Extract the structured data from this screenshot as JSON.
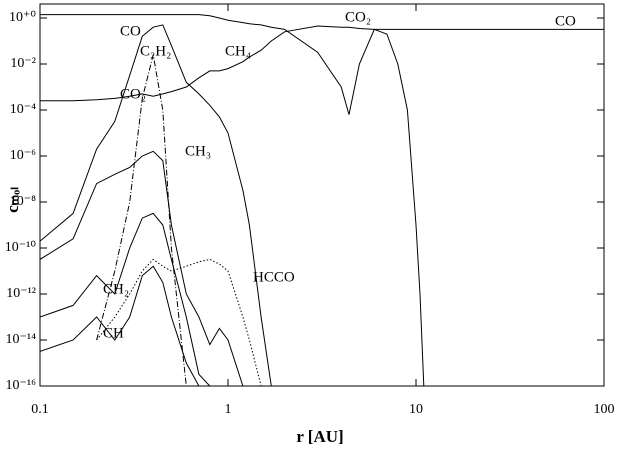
{
  "chart_data": {
    "type": "line",
    "xlabel": "r [AU]",
    "ylabel": "cₘₒₗ",
    "log_x": true,
    "log_y": true,
    "xlim": [
      0.1,
      100
    ],
    "ylim": [
      1e-16,
      1
    ],
    "xticks": [
      0.1,
      1,
      10,
      100
    ],
    "yticks": [
      {
        "value": 1,
        "label": "10⁺⁰"
      },
      {
        "value": 0.01,
        "label": "10⁻²"
      },
      {
        "value": 0.0001,
        "label": "10⁻⁴"
      },
      {
        "value": 1e-06,
        "label": "10⁻⁶"
      },
      {
        "value": 1e-08,
        "label": "10⁻⁸"
      },
      {
        "value": 1e-10,
        "label": "10⁻¹⁰"
      },
      {
        "value": 1e-12,
        "label": "10⁻¹²"
      },
      {
        "value": 1e-14,
        "label": "10⁻¹⁴"
      },
      {
        "value": 1e-16,
        "label": "10⁻¹⁶"
      }
    ],
    "x": [
      0.1,
      0.15,
      0.2,
      0.25,
      0.3,
      0.35,
      0.4,
      0.45,
      0.5,
      0.6,
      0.7,
      0.8,
      0.9,
      1,
      1.2,
      1.3,
      1.5,
      1.7,
      2,
      3,
      4,
      4.4,
      5,
      6,
      7,
      8,
      9,
      10,
      10.5,
      11,
      20,
      50,
      100
    ],
    "series": [
      {
        "name": "CO",
        "color": "#000000",
        "style": "solid",
        "values": [
          1.4,
          1.4,
          1.4,
          1.4,
          1.4,
          1.4,
          1.4,
          1.4,
          1.4,
          1.4,
          1.4,
          1.25,
          1,
          0.8,
          0.63,
          0.56,
          0.5,
          0.4,
          0.32,
          0.032,
          0.001,
          6.3e-05,
          0.01,
          0.32,
          0.32,
          0.32,
          0.32,
          0.32,
          0.32,
          0.32,
          0.32,
          0.32,
          0.32
        ]
      },
      {
        "name": "CO₂",
        "color": "#000000",
        "style": "solid",
        "values": [
          0.00025,
          0.00025,
          0.00028,
          0.00032,
          0.0004,
          0.0005,
          0.0004,
          0.0005,
          0.00063,
          0.001,
          0.0025,
          0.005,
          0.005,
          0.0063,
          0.0126,
          0.02,
          0.04,
          0.1,
          0.25,
          0.45,
          0.4,
          0.4,
          0.35,
          0.32,
          0.2,
          0.01,
          0.0001,
          1e-09,
          1e-12,
          1e-16,
          null,
          null,
          null
        ]
      },
      {
        "name": "C₂H₂",
        "color": "#000000",
        "style": "dashdot",
        "values": [
          null,
          null,
          1e-14,
          1e-11,
          1e-08,
          0.00032,
          0.025,
          0.0001,
          1e-10,
          1e-16,
          null,
          null,
          null,
          null,
          null,
          null,
          null,
          null,
          null,
          null,
          null,
          null,
          null,
          null,
          null,
          null,
          null,
          null,
          null,
          null,
          null,
          null,
          null
        ]
      },
      {
        "name": "CH₄",
        "color": "#000000",
        "style": "solid",
        "values": [
          2e-10,
          3.2e-09,
          2e-06,
          3.2e-05,
          0.0032,
          0.16,
          0.4,
          0.5,
          0.063,
          0.0016,
          0.0005,
          0.00016,
          5e-05,
          1e-05,
          3.2e-08,
          1e-09,
          1e-13,
          1e-16,
          null,
          null,
          null,
          null,
          null,
          null,
          null,
          null,
          null,
          null,
          null,
          null,
          null,
          null,
          null
        ]
      },
      {
        "name": "CH₃",
        "color": "#000000",
        "style": "solid",
        "values": [
          3.2e-11,
          2.5e-10,
          6.3e-08,
          1.6e-07,
          3.2e-07,
          1e-06,
          1.6e-06,
          6.3e-07,
          1e-09,
          1e-12,
          1e-13,
          6.3e-15,
          3.2e-14,
          1e-14,
          1e-16,
          null,
          null,
          null,
          null,
          null,
          null,
          null,
          null,
          null,
          null,
          null,
          null,
          null,
          null,
          null,
          null,
          null,
          null
        ]
      },
      {
        "name": "CH₂",
        "color": "#000000",
        "style": "solid",
        "values": [
          1e-13,
          3.2e-13,
          6.3e-12,
          1e-12,
          1e-10,
          2e-09,
          3.2e-09,
          1e-09,
          3.2e-11,
          1e-13,
          3.2e-16,
          1e-16,
          null,
          null,
          null,
          null,
          null,
          null,
          null,
          null,
          null,
          null,
          null,
          null,
          null,
          null,
          null,
          null,
          null,
          null,
          null,
          null,
          null
        ]
      },
      {
        "name": "CH",
        "color": "#000000",
        "style": "solid",
        "values": [
          3.2e-15,
          1e-14,
          1e-13,
          1e-14,
          1e-13,
          6.3e-12,
          1.6e-11,
          3.2e-12,
          1e-13,
          1e-15,
          1e-16,
          null,
          null,
          null,
          null,
          null,
          null,
          null,
          null,
          null,
          null,
          null,
          null,
          null,
          null,
          null,
          null,
          null,
          null,
          null,
          null,
          null,
          null
        ]
      },
      {
        "name": "HCCO",
        "color": "#000000",
        "style": "dotted",
        "values": [
          null,
          null,
          1e-14,
          1e-13,
          1e-12,
          1e-11,
          3.2e-11,
          1.6e-11,
          1e-11,
          1.6e-11,
          2.5e-11,
          3.2e-11,
          2e-11,
          1e-11,
          1e-13,
          1e-14,
          1e-16,
          null,
          null,
          null,
          null,
          null,
          null,
          null,
          null,
          null,
          null,
          null,
          null,
          null,
          null,
          null,
          null
        ]
      }
    ]
  }
}
